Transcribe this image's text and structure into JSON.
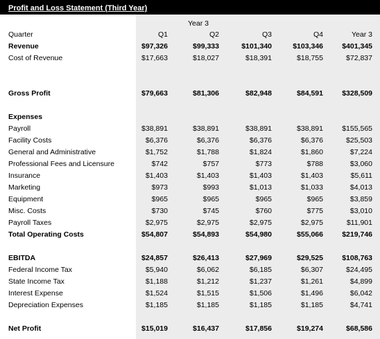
{
  "title": "Profit and Loss Statement (Third Year)",
  "year_label": "Year 3",
  "header": {
    "label": "Quarter",
    "columns": [
      "Q1",
      "Q2",
      "Q3",
      "Q4",
      "Year 3"
    ]
  },
  "rows": [
    {
      "label": "Revenue",
      "bold": true,
      "values": [
        "$97,326",
        "$99,333",
        "$101,340",
        "$103,346",
        "$401,345"
      ]
    },
    {
      "label": "Cost of Revenue",
      "bold": false,
      "values": [
        "$17,663",
        "$18,027",
        "$18,391",
        "$18,755",
        "$72,837"
      ]
    },
    {
      "label": "Gross Profit",
      "bold": true,
      "values": [
        "$79,663",
        "$81,306",
        "$82,948",
        "$84,591",
        "$328,509"
      ]
    },
    {
      "label": "Expenses",
      "bold": true,
      "values": []
    },
    {
      "label": "Payroll",
      "bold": false,
      "values": [
        "$38,891",
        "$38,891",
        "$38,891",
        "$38,891",
        "$155,565"
      ]
    },
    {
      "label": "Facility Costs",
      "bold": false,
      "values": [
        "$6,376",
        "$6,376",
        "$6,376",
        "$6,376",
        "$25,503"
      ]
    },
    {
      "label": "General and Administrative",
      "bold": false,
      "values": [
        "$1,752",
        "$1,788",
        "$1,824",
        "$1,860",
        "$7,224"
      ]
    },
    {
      "label": "Professional Fees and Licensure",
      "bold": false,
      "values": [
        "$742",
        "$757",
        "$773",
        "$788",
        "$3,060"
      ]
    },
    {
      "label": "Insurance",
      "bold": false,
      "values": [
        "$1,403",
        "$1,403",
        "$1,403",
        "$1,403",
        "$5,611"
      ]
    },
    {
      "label": "Marketing",
      "bold": false,
      "values": [
        "$973",
        "$993",
        "$1,013",
        "$1,033",
        "$4,013"
      ]
    },
    {
      "label": "Equipment",
      "bold": false,
      "values": [
        "$965",
        "$965",
        "$965",
        "$965",
        "$3,859"
      ]
    },
    {
      "label": "Misc. Costs",
      "bold": false,
      "values": [
        "$730",
        "$745",
        "$760",
        "$775",
        "$3,010"
      ]
    },
    {
      "label": "Payroll Taxes",
      "bold": false,
      "values": [
        "$2,975",
        "$2,975",
        "$2,975",
        "$2,975",
        "$11,901"
      ]
    },
    {
      "label": "Total Operating Costs",
      "bold": true,
      "values": [
        "$54,807",
        "$54,893",
        "$54,980",
        "$55,066",
        "$219,746"
      ]
    },
    {
      "label": "EBITDA",
      "bold": true,
      "values": [
        "$24,857",
        "$26,413",
        "$27,969",
        "$29,525",
        "$108,763"
      ]
    },
    {
      "label": "Federal Income Tax",
      "bold": false,
      "values": [
        "$5,940",
        "$6,062",
        "$6,185",
        "$6,307",
        "$24,495"
      ]
    },
    {
      "label": "State Income Tax",
      "bold": false,
      "values": [
        "$1,188",
        "$1,212",
        "$1,237",
        "$1,261",
        "$4,899"
      ]
    },
    {
      "label": "Interest Expense",
      "bold": false,
      "values": [
        "$1,524",
        "$1,515",
        "$1,506",
        "$1,496",
        "$6,042"
      ]
    },
    {
      "label": "Depreciation Expenses",
      "bold": false,
      "values": [
        "$1,185",
        "$1,185",
        "$1,185",
        "$1,185",
        "$4,741"
      ]
    },
    {
      "label": "Net Profit",
      "bold": true,
      "values": [
        "$15,019",
        "$16,437",
        "$17,856",
        "$19,274",
        "$68,586"
      ]
    }
  ]
}
